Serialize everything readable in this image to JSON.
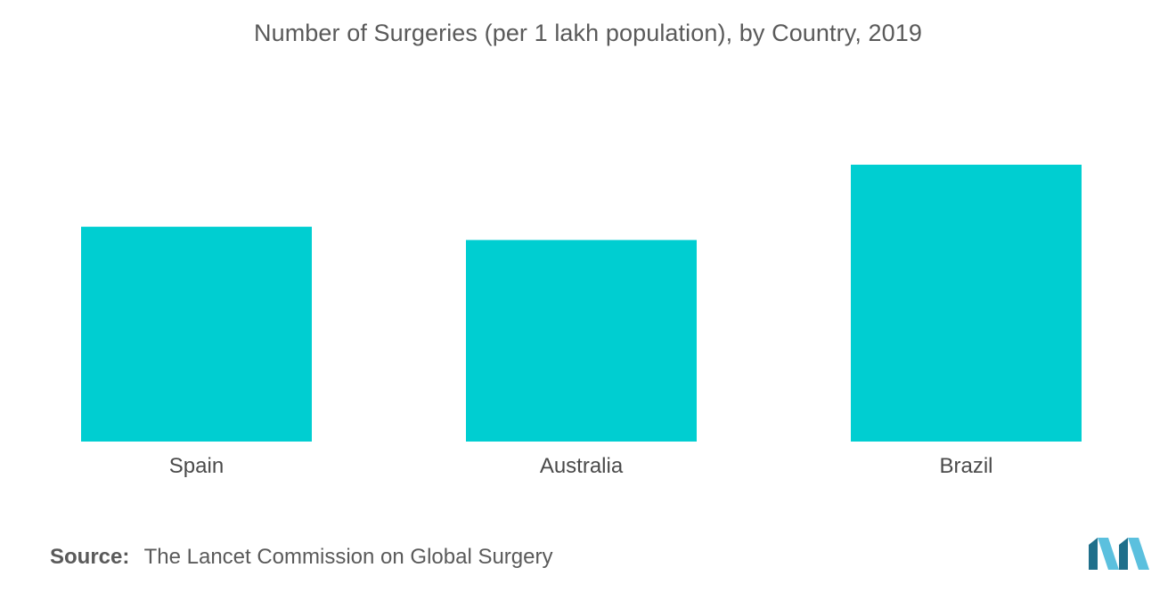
{
  "chart_data": {
    "type": "bar",
    "title": "Number of Surgeries (per 1 lakh population), by Country, 2019",
    "categories": [
      "Spain",
      "Australia",
      "Brazil"
    ],
    "values": [
      77.6,
      72.8,
      100
    ],
    "xlabel": "",
    "ylabel": "",
    "ylim": [
      0,
      100
    ],
    "grid": false,
    "legend": "none",
    "bar_color": "#00ced1"
  },
  "source": {
    "label": "Source:",
    "text": "The Lancet Commission on Global Surgery"
  },
  "colors": {
    "bar": "#00ced1",
    "text": "#5a5a5a",
    "logo_dark": "#1f6f8b",
    "logo_light": "#5bc0de"
  },
  "logo_icon": "mordor-intelligence-logo"
}
